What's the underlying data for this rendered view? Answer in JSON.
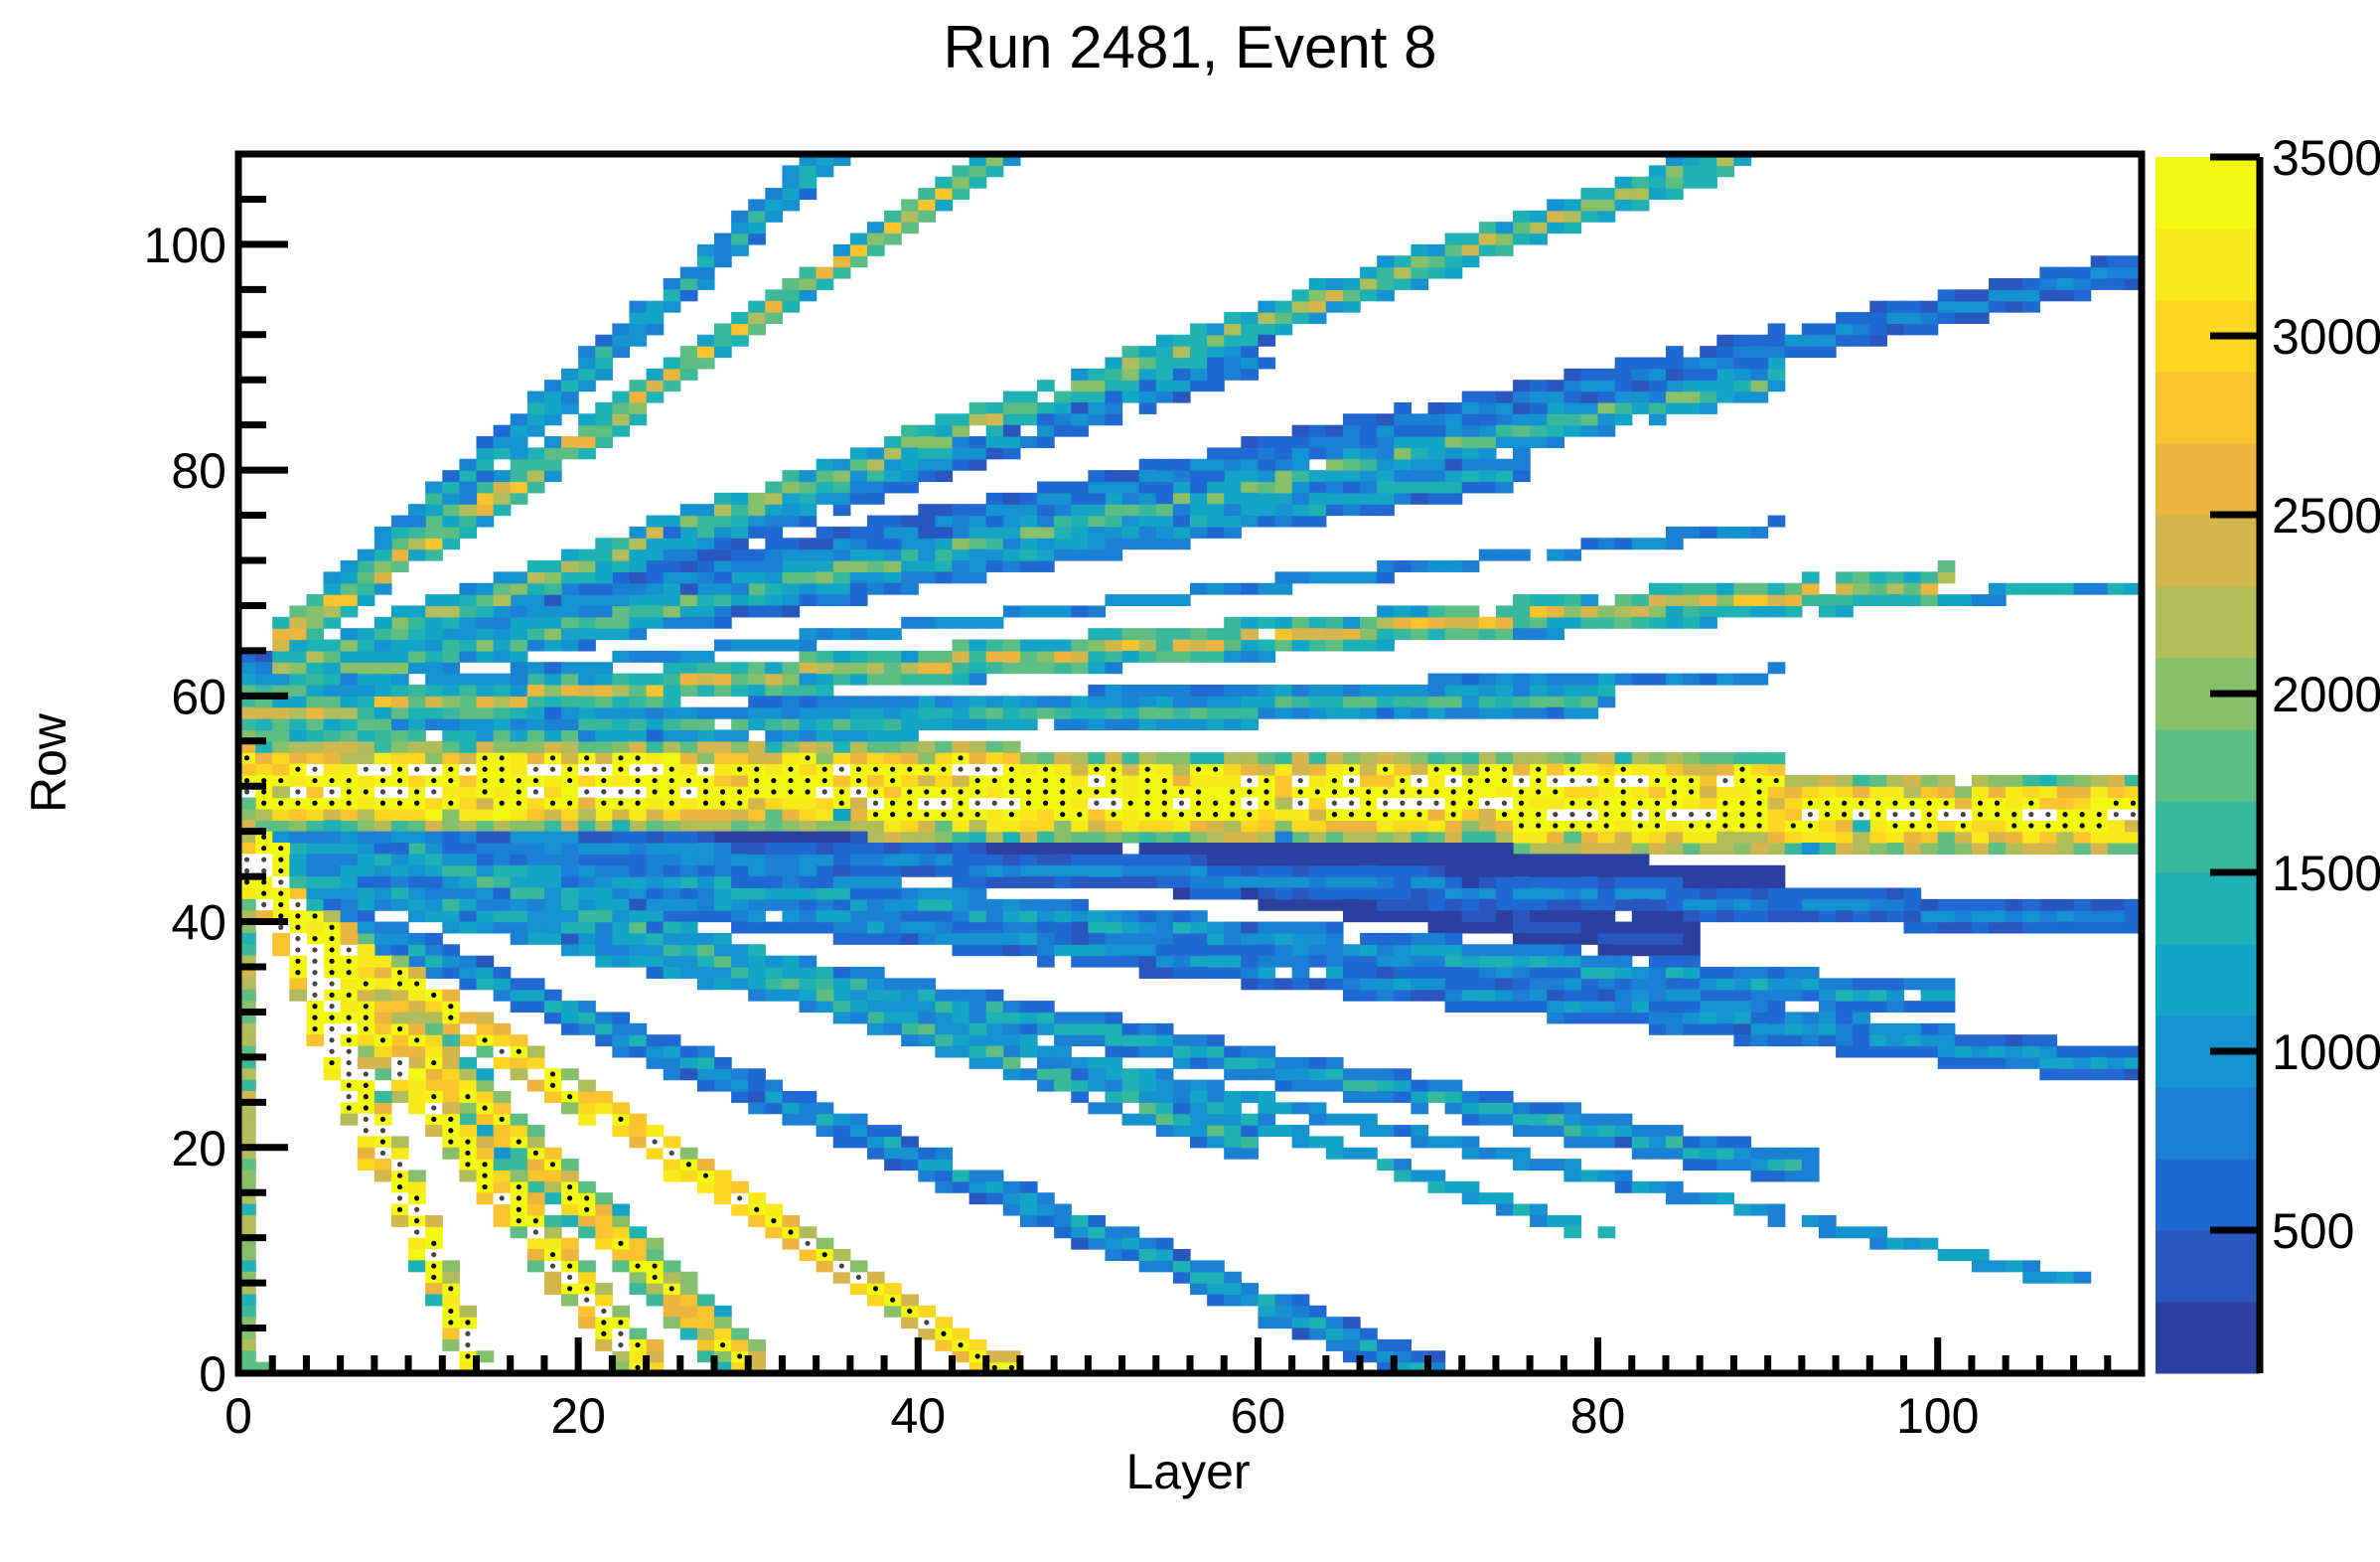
{
  "chart_data": {
    "type": "heatmap",
    "title": "Run 2481, Event 8",
    "xlabel": "Layer",
    "ylabel": "Row",
    "xlim": [
      0,
      112
    ],
    "ylim": [
      0,
      108
    ],
    "x_ticks": [
      "0",
      "20",
      "40",
      "60",
      "80",
      "100"
    ],
    "y_ticks": [
      "0",
      "20",
      "40",
      "60",
      "80",
      "100"
    ],
    "colorbar": {
      "range": [
        100,
        3500
      ],
      "ticks": [
        "500",
        "1000",
        "1500",
        "2000",
        "2500",
        "3000",
        "3500"
      ],
      "palette": [
        "#2b3f9e",
        "#2a56c0",
        "#2169d2",
        "#1b7fd4",
        "#1592d0",
        "#13a4c6",
        "#1fb2b4",
        "#3ab89c",
        "#5dbd83",
        "#87bf6b",
        "#b0bd5a",
        "#d3b64d",
        "#ecb53f",
        "#f9c42d",
        "#fbd722",
        "#f8ea1a",
        "#f3f812"
      ]
    },
    "grid": false,
    "tracks": [
      {
        "x0": 0,
        "y0": 52,
        "x1": 112,
        "y1": 49,
        "w": 3.0,
        "base": 3300
      },
      {
        "x0": 0,
        "y0": 54,
        "x1": 90,
        "y1": 52,
        "w": 2.0,
        "base": 3100
      },
      {
        "x0": 0,
        "y0": 50,
        "x1": 112,
        "y1": 47,
        "w": 1.5,
        "base": 1500
      },
      {
        "x0": 20,
        "y0": 51,
        "x1": 90,
        "y1": 42,
        "w": 2.2,
        "base": 200
      },
      {
        "x0": 30,
        "y0": 49,
        "x1": 85,
        "y1": 38,
        "w": 1.2,
        "base": 250
      },
      {
        "x0": 0,
        "y0": 56,
        "x1": 80,
        "y1": 60,
        "w": 1.2,
        "base": 1200
      },
      {
        "x0": 0,
        "y0": 58,
        "x1": 100,
        "y1": 70,
        "w": 1.3,
        "base": 1800
      },
      {
        "x0": 0,
        "y0": 57,
        "x1": 112,
        "y1": 70,
        "w": 0.8,
        "base": 900
      },
      {
        "x0": 0,
        "y0": 60,
        "x1": 90,
        "y1": 88,
        "w": 1.2,
        "base": 1300
      },
      {
        "x0": 0,
        "y0": 62,
        "x1": 112,
        "y1": 98,
        "w": 1.0,
        "base": 700
      },
      {
        "x0": 2,
        "y0": 62,
        "x1": 88,
        "y1": 108,
        "w": 1.3,
        "base": 1500
      },
      {
        "x0": 2,
        "y0": 64,
        "x1": 45,
        "y1": 108,
        "w": 1.3,
        "base": 1800
      },
      {
        "x0": 3,
        "y0": 65,
        "x1": 35,
        "y1": 108,
        "w": 1.5,
        "base": 1000
      },
      {
        "x0": 3,
        "y0": 62,
        "x1": 60,
        "y1": 90,
        "w": 1.0,
        "base": 800
      },
      {
        "x0": 5,
        "y0": 62,
        "x1": 75,
        "y1": 80,
        "w": 1.0,
        "base": 900
      },
      {
        "x0": 5,
        "y0": 60,
        "x1": 90,
        "y1": 75,
        "w": 0.8,
        "base": 700
      },
      {
        "x0": 10,
        "y0": 58,
        "x1": 90,
        "y1": 62,
        "w": 0.8,
        "base": 600
      },
      {
        "x0": 0,
        "y0": 48,
        "x1": 112,
        "y1": 40,
        "w": 1.0,
        "base": 700
      },
      {
        "x0": 0,
        "y0": 47,
        "x1": 100,
        "y1": 33,
        "w": 1.0,
        "base": 900
      },
      {
        "x0": 0,
        "y0": 46,
        "x1": 112,
        "y1": 27,
        "w": 1.0,
        "base": 800
      },
      {
        "x0": 0,
        "y0": 45,
        "x1": 92,
        "y1": 18,
        "w": 1.0,
        "base": 1000
      },
      {
        "x0": 0,
        "y0": 44,
        "x1": 108,
        "y1": 8,
        "w": 0.9,
        "base": 800
      },
      {
        "x0": 0,
        "y0": 44,
        "x1": 70,
        "y1": 0,
        "w": 1.0,
        "base": 900
      },
      {
        "x0": 0,
        "y0": 44,
        "x1": 45,
        "y1": 0,
        "w": 1.6,
        "base": 3000
      },
      {
        "x0": 0,
        "y0": 45,
        "x1": 30,
        "y1": 0,
        "w": 2.0,
        "base": 2600
      },
      {
        "x0": 0,
        "y0": 45,
        "x1": 24,
        "y1": 0,
        "w": 2.5,
        "base": 3100
      },
      {
        "x0": 2,
        "y0": 45,
        "x1": 14,
        "y1": 0,
        "w": 2.0,
        "base": 3200
      },
      {
        "x0": 1,
        "y0": 46,
        "x1": 8,
        "y1": 20,
        "w": 2.5,
        "base": 3300
      },
      {
        "x0": 0,
        "y0": 48,
        "x1": 1,
        "y1": 0,
        "w": 0.8,
        "base": 1500
      },
      {
        "x0": 10,
        "y0": 46,
        "x1": 60,
        "y1": 20,
        "w": 1.0,
        "base": 1200
      },
      {
        "x0": 15,
        "y0": 45,
        "x1": 80,
        "y1": 12,
        "w": 0.8,
        "base": 900
      },
      {
        "x0": 15,
        "y0": 48,
        "x1": 100,
        "y1": 30,
        "w": 0.9,
        "base": 700
      }
    ]
  }
}
